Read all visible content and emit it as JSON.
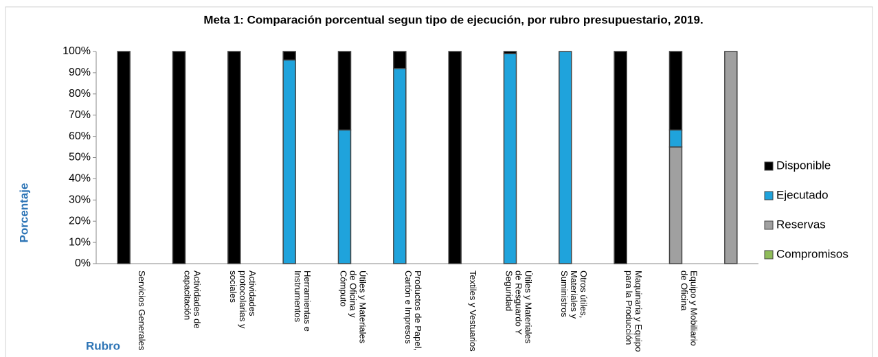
{
  "chart_data": {
    "type": "bar",
    "stacked": true,
    "title": "Meta 1: Comparación porcentual segun tipo de ejecución, por rubro presupuestario, 2019.",
    "ylabel": "Porcentaje",
    "xlabel": "Rubro",
    "categories": [
      "Servicios Generales",
      "Actividades de capacitación",
      "Actividades protocolarias y sociales",
      "Herramientas e Instrumentos",
      "Útiles y Materiales de Oficina y Cómputo",
      "Productos de Papel, Cartón e Impresos",
      "Textiles y Vestuarios",
      "Útiles y Materiales de Resguardo Y Seguridad",
      "Otros útiles, Materiales y Suministros",
      "Maquinaria y Equipo para la Producción",
      "Equipo y Mobiliario de Oficina",
      null
    ],
    "series": [
      {
        "name": "Compromisos",
        "color": "#8fbc5a",
        "values": [
          0,
          0,
          0,
          0,
          0,
          0,
          0,
          0,
          0,
          0,
          0,
          0
        ]
      },
      {
        "name": "Reservas",
        "color": "#a0a0a0",
        "values": [
          0,
          0,
          0,
          0,
          0,
          0,
          0,
          0,
          0,
          0,
          55,
          100
        ]
      },
      {
        "name": "Ejecutado",
        "color": "#1fa3dc",
        "values": [
          0,
          0,
          0,
          96,
          63,
          92,
          0,
          99,
          100,
          0,
          8,
          0
        ]
      },
      {
        "name": "Disponible",
        "color": "#000000",
        "values": [
          100,
          100,
          100,
          4,
          37,
          8,
          100,
          1,
          0,
          100,
          37,
          0
        ]
      }
    ],
    "ylim": [
      0,
      100
    ],
    "yticks": [
      {
        "value": 0,
        "label": "0%"
      },
      {
        "value": 10,
        "label": "10%"
      },
      {
        "value": 20,
        "label": "20%"
      },
      {
        "value": 30,
        "label": "30%"
      },
      {
        "value": 40,
        "label": "40%"
      },
      {
        "value": 50,
        "label": "50%"
      },
      {
        "value": 60,
        "label": "60%"
      },
      {
        "value": 70,
        "label": "70%"
      },
      {
        "value": 80,
        "label": "80%"
      },
      {
        "value": 90,
        "label": "90%"
      },
      {
        "value": 100,
        "label": "100%"
      }
    ],
    "legend": "right"
  }
}
